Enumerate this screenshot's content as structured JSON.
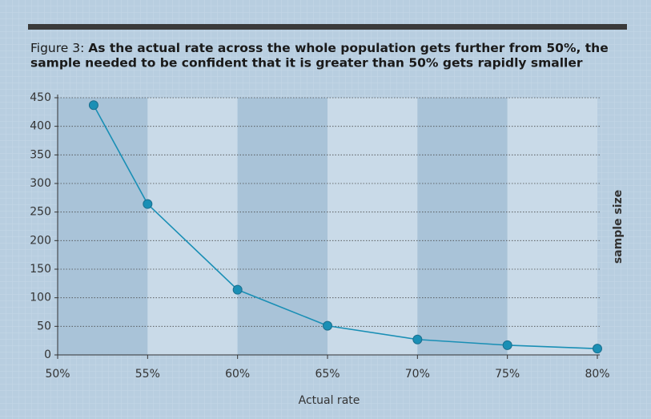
{
  "chart_data": {
    "type": "line",
    "figure_label": "Figure 3:",
    "title": [
      "As the actual rate across the whole population gets further from 50%, the",
      "sample needed to be confident that it is greater than 50% gets rapidly smaller"
    ],
    "x_label": "Actual rate",
    "y_label": "sample size",
    "x": [
      52,
      55,
      60,
      65,
      70,
      75,
      80
    ],
    "series": [
      {
        "name": "sample size",
        "color": "#1a8fb5",
        "values": [
          437,
          264,
          114,
          51,
          27,
          17,
          11
        ]
      }
    ],
    "xlim": [
      50,
      80
    ],
    "xticks": [
      {
        "value": 50,
        "label": "50%"
      },
      {
        "value": 55,
        "label": "55%"
      },
      {
        "value": 60,
        "label": "60%"
      },
      {
        "value": 65,
        "label": "65%"
      },
      {
        "value": 70,
        "label": "70%"
      },
      {
        "value": 75,
        "label": "75%"
      },
      {
        "value": 80,
        "label": "80%"
      }
    ],
    "ylim": [
      0,
      450
    ],
    "yticks": [
      0,
      50,
      100,
      150,
      200,
      250,
      300,
      350,
      400,
      450
    ],
    "grid": true
  }
}
